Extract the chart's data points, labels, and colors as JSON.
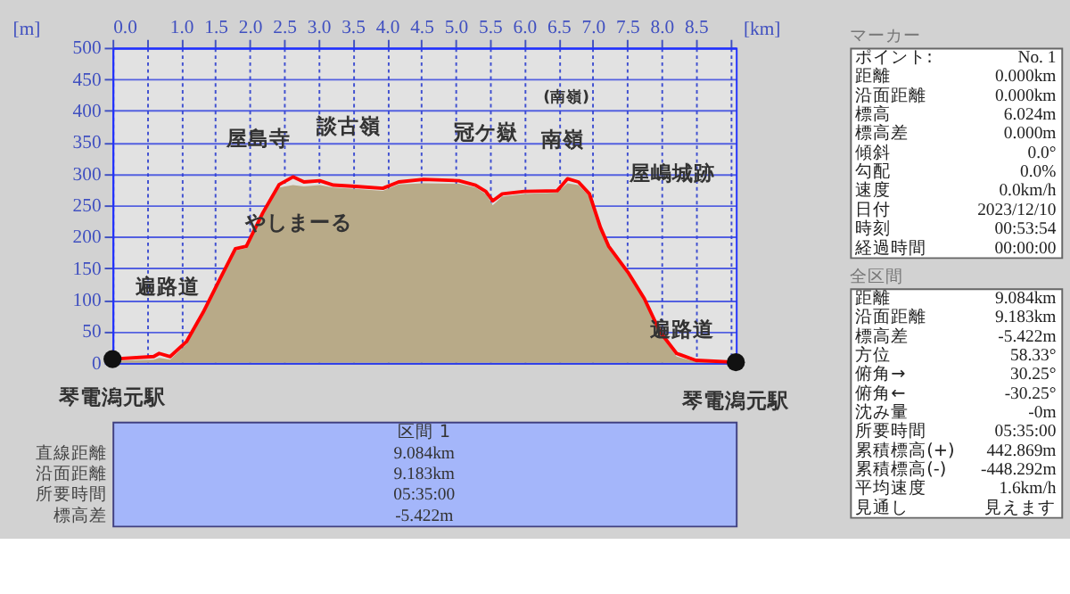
{
  "chart_data": [
    {
      "type": "line",
      "xlabel": "[km]",
      "ylabel": "[m]",
      "xlim": [
        0,
        9.084
      ],
      "ylim": [
        0,
        500
      ],
      "xticks": [
        {
          "value": 0,
          "label": "0.0"
        },
        {
          "value": 0.5,
          "label": null
        },
        {
          "value": 1,
          "label": "1.0"
        },
        1.5,
        {
          "value": 2,
          "label": "2.0"
        },
        2.5,
        {
          "value": 3,
          "label": "3.0"
        },
        3.5,
        {
          "value": 4,
          "label": "4.0"
        },
        4.5,
        {
          "value": 5,
          "label": "5.0"
        },
        5.5,
        {
          "value": 6,
          "label": "6.0"
        },
        6.5,
        {
          "value": 7,
          "label": "7.0"
        },
        7.5,
        {
          "value": 8,
          "label": "8.0"
        },
        8.5,
        {
          "value": 9,
          "label": null
        }
      ],
      "yticks": [
        0,
        50,
        100,
        150,
        200,
        250,
        300,
        350,
        400,
        450,
        500
      ],
      "grid": true,
      "x": [
        0,
        0.6,
        0.68,
        0.84,
        1.08,
        1.32,
        1.56,
        1.79,
        1.95,
        2.19,
        2.43,
        2.63,
        2.79,
        3.02,
        3.22,
        3.54,
        3.94,
        4.17,
        4.53,
        5.05,
        5.29,
        5.44,
        5.54,
        5.68,
        6.0,
        6.48,
        6.56,
        6.63,
        6.79,
        6.95,
        7.11,
        7.23,
        7.51,
        7.75,
        7.98,
        8.22,
        8.5,
        9.084
      ],
      "series": [
        {
          "type": "area",
          "color": "#b8aa88",
          "values": [
            3,
            5,
            8,
            5,
            30,
            75,
            128,
            178,
            182,
            234,
            278,
            282,
            280,
            282,
            278,
            276,
            273,
            283,
            285,
            284,
            278,
            268,
            250,
            264,
            268,
            270,
            278,
            285,
            282,
            264,
            212,
            182,
            140,
            98,
            45,
            10,
            2,
            0
          ]
        },
        {
          "type": "line",
          "color": "#ff0000",
          "values": [
            6,
            10,
            15,
            10,
            34,
            80,
            132,
            181,
            185,
            238,
            283,
            295,
            287,
            289,
            282,
            280,
            277,
            287,
            291,
            289,
            282,
            272,
            257,
            268,
            272,
            273,
            283,
            292,
            287,
            268,
            215,
            185,
            144,
            102,
            49,
            15,
            4,
            1
          ]
        },
        {
          "type": "scatter",
          "color": "#111111",
          "x": [
            0,
            9.084
          ],
          "values": [
            6,
            1
          ]
        }
      ],
      "annotations": [
        {
          "text": "屋島寺",
          "x": 2.63,
          "y": 295
        },
        {
          "text": "談古嶺",
          "x": 3.94,
          "y": 277
        },
        {
          "text": "冠ケ嶽",
          "x": 5.44,
          "y": 272
        },
        "(南嶺)",
        {
          "text": "南嶺",
          "x": 6.56,
          "y": 283
        },
        {
          "text": "やしまーる",
          "x": 3.02,
          "y": 289
        },
        {
          "text": "屋嶋城跡",
          "x": 6.95,
          "y": 268
        },
        {
          "text": "遍路道",
          "x": 1.56,
          "y": 132
        },
        {
          "text": "遍路道",
          "x": 7.75,
          "y": 102
        },
        {
          "text": "琴電潟元駅",
          "x": 0,
          "y": 6
        },
        {
          "text": "琴電潟元駅",
          "x": 9.084,
          "y": 1
        }
      ]
    },
    {
      "type": "other",
      "title": "区間 1",
      "annotations": [
        "直線距離",
        "9.084km",
        "沿面距離",
        "9.183km",
        "所要時間",
        "05:35:00",
        "標高差",
        "-5.422m"
      ]
    },
    {
      "type": "other",
      "title": "マーカー",
      "annotations": [
        "ポイント:",
        "No. 1",
        "距離",
        "0.000km",
        "沿面距離",
        "0.000km",
        "標高",
        "6.024m",
        "標高差",
        "0.000m",
        "傾斜",
        "0.0°",
        "勾配",
        "0.0%",
        "速度",
        "0.0km/h",
        "日付",
        "2023/12/10",
        "時刻",
        "00:53:54",
        "経過時間",
        "00:00:00"
      ]
    },
    {
      "type": "other",
      "title": "全区間",
      "annotations": [
        "距離",
        "9.084km",
        "沿面距離",
        "9.183km",
        "標高差",
        "-5.422m",
        "方位",
        "58.33°",
        "俯角→",
        "30.25°",
        "俯角←",
        "-30.25°",
        "沈み量",
        "-0m",
        "所要時間",
        "05:35:00",
        "累積標高(+)",
        "442.869m",
        "累積標高(-)",
        "-448.292m",
        "平均速度",
        "1.6km/h",
        "見通し",
        "見えます"
      ]
    }
  ]
}
